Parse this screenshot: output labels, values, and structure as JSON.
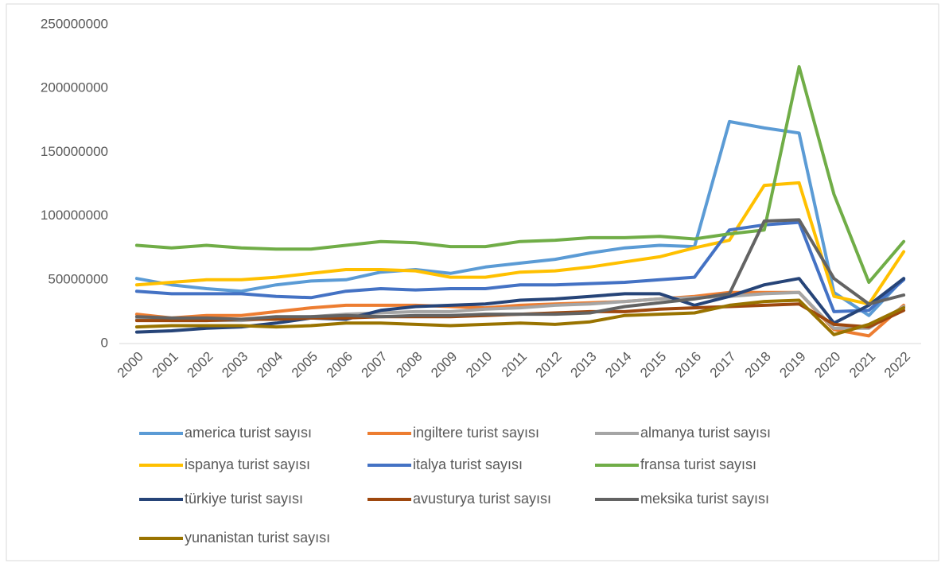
{
  "chart_data": {
    "type": "line",
    "x": [
      "2000",
      "2001",
      "2002",
      "2003",
      "2004",
      "2005",
      "2006",
      "2007",
      "2008",
      "2009",
      "2010",
      "2011",
      "2012",
      "2013",
      "2014",
      "2015",
      "2016",
      "2017",
      "2018",
      "2019",
      "2020",
      "2021",
      "2022"
    ],
    "ylim": [
      0,
      250000000
    ],
    "yticks": [
      0,
      50000000,
      100000000,
      150000000,
      200000000,
      250000000
    ],
    "grid": false,
    "legend": "bottom",
    "series": [
      {
        "name": "america turist sayısı",
        "color": "#5B9BD5",
        "values": [
          51000000,
          46000000,
          43000000,
          41000000,
          46000000,
          49000000,
          50000000,
          56000000,
          58000000,
          55000000,
          60000000,
          63000000,
          66000000,
          71000000,
          75000000,
          77000000,
          76000000,
          174000000,
          169000000,
          165000000,
          40000000,
          22000000,
          51000000
        ]
      },
      {
        "name": "ingiltere turist sayısı",
        "color": "#ED7D31",
        "values": [
          23000000,
          20000000,
          22000000,
          22000000,
          25000000,
          28000000,
          30000000,
          30000000,
          30000000,
          29000000,
          28000000,
          30000000,
          31000000,
          32000000,
          33000000,
          35000000,
          37000000,
          40000000,
          40000000,
          40000000,
          11000000,
          6000000,
          30000000
        ]
      },
      {
        "name": "almanya turist sayısı",
        "color": "#A5A5A5",
        "values": [
          19000000,
          18000000,
          18000000,
          18000000,
          20000000,
          21000000,
          23000000,
          24000000,
          25000000,
          25000000,
          27000000,
          28000000,
          30000000,
          31000000,
          33000000,
          35000000,
          36000000,
          37000000,
          39000000,
          40000000,
          12000000,
          12000000,
          29000000
        ]
      },
      {
        "name": "ispanya turist sayısı",
        "color": "#FFC000",
        "values": [
          46000000,
          48000000,
          50000000,
          50000000,
          52000000,
          55000000,
          58000000,
          58000000,
          57000000,
          52000000,
          52000000,
          56000000,
          57000000,
          60000000,
          64000000,
          68000000,
          75000000,
          81000000,
          124000000,
          126000000,
          37000000,
          31000000,
          72000000
        ]
      },
      {
        "name": "italya turist sayısı",
        "color": "#4472C4",
        "values": [
          41000000,
          39000000,
          39000000,
          39000000,
          37000000,
          36000000,
          41000000,
          43000000,
          42000000,
          43000000,
          43000000,
          46000000,
          46000000,
          47000000,
          48000000,
          50000000,
          52000000,
          89000000,
          93000000,
          95000000,
          25000000,
          26000000,
          50000000
        ]
      },
      {
        "name": "fransa turist sayısı",
        "color": "#70AD47",
        "values": [
          77000000,
          75000000,
          77000000,
          75000000,
          74000000,
          74000000,
          77000000,
          80000000,
          79000000,
          76000000,
          76000000,
          80000000,
          81000000,
          83000000,
          83000000,
          84000000,
          82000000,
          86000000,
          89000000,
          217000000,
          117000000,
          48000000,
          80000000
        ]
      },
      {
        "name": "türkiye turist sayısı",
        "color": "#264478",
        "values": [
          9000000,
          10000000,
          12000000,
          13000000,
          16000000,
          20000000,
          19000000,
          26000000,
          29000000,
          30000000,
          31000000,
          34000000,
          35000000,
          37000000,
          39000000,
          39000000,
          30000000,
          37000000,
          46000000,
          51000000,
          16000000,
          30000000,
          51000000
        ]
      },
      {
        "name": "avusturya turist sayısı",
        "color": "#9E480E",
        "values": [
          18000000,
          18000000,
          18000000,
          19000000,
          19000000,
          20000000,
          20000000,
          21000000,
          21000000,
          21000000,
          22000000,
          23000000,
          24000000,
          25000000,
          25000000,
          27000000,
          28000000,
          29000000,
          30000000,
          31000000,
          15000000,
          13000000,
          26000000
        ]
      },
      {
        "name": "meksika turist sayısı",
        "color": "#636363",
        "values": [
          21000000,
          20000000,
          20000000,
          19000000,
          21000000,
          21000000,
          22000000,
          21000000,
          22000000,
          22000000,
          23000000,
          23000000,
          23000000,
          24000000,
          29000000,
          32000000,
          35000000,
          39000000,
          96000000,
          97000000,
          51000000,
          31000000,
          38000000
        ]
      },
      {
        "name": "yunanistan turist sayısı",
        "color": "#997300",
        "values": [
          13000000,
          14000000,
          14000000,
          14000000,
          13000000,
          14000000,
          16000000,
          16000000,
          15000000,
          14000000,
          15000000,
          16000000,
          15000000,
          17000000,
          22000000,
          23000000,
          24000000,
          30000000,
          33000000,
          34000000,
          7000000,
          15000000,
          28000000
        ]
      }
    ]
  }
}
